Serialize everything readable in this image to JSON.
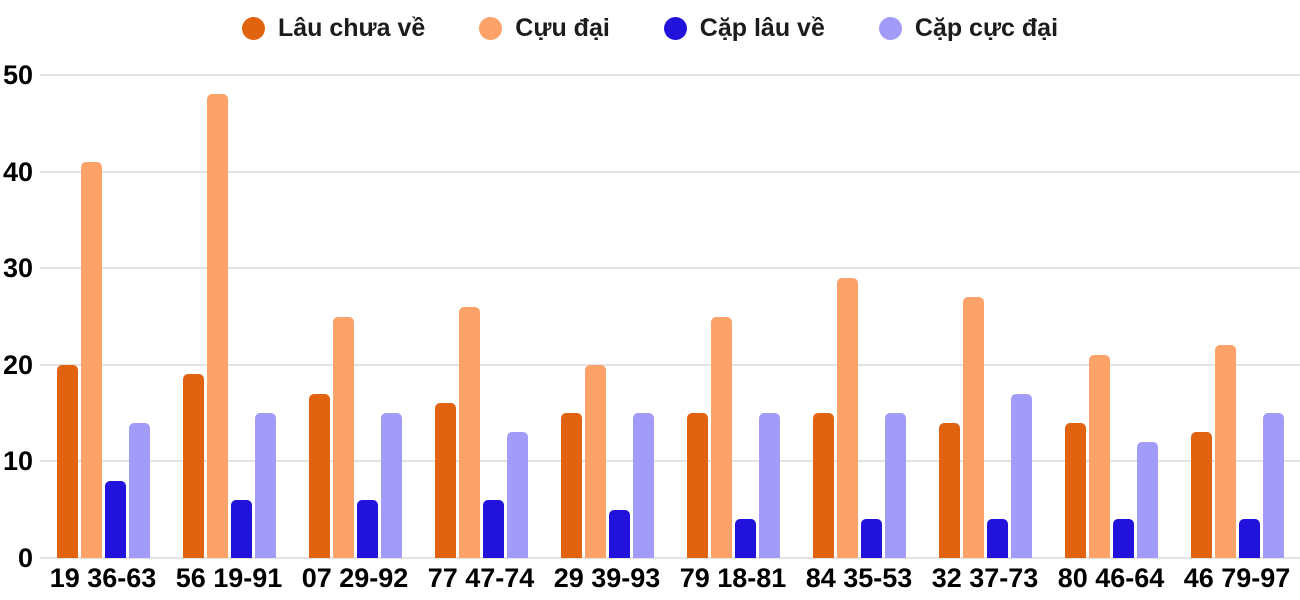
{
  "chart_data": {
    "type": "bar",
    "title": "",
    "xlabel": "",
    "ylabel": "",
    "categories": [
      "19 36-63",
      "56 19-91",
      "07 29-92",
      "77 47-74",
      "29 39-93",
      "79 18-81",
      "84 35-53",
      "32 37-73",
      "80 46-64",
      "46 79-97"
    ],
    "series": [
      {
        "name": "Lâu chưa về",
        "color": "#E2630F",
        "values": [
          20,
          19,
          17,
          16,
          15,
          15,
          15,
          14,
          14,
          13
        ]
      },
      {
        "name": "Cựu đại",
        "color": "#FDA269",
        "values": [
          41,
          48,
          25,
          26,
          20,
          25,
          29,
          27,
          21,
          22
        ]
      },
      {
        "name": "Cặp lâu về",
        "color": "#2112DC",
        "values": [
          8,
          6,
          6,
          6,
          5,
          4,
          4,
          4,
          4,
          4
        ]
      },
      {
        "name": "Cặp cực đại",
        "color": "#A29BF8",
        "values": [
          14,
          15,
          15,
          13,
          15,
          15,
          15,
          17,
          12,
          15
        ]
      }
    ],
    "ylim": [
      0,
      50
    ],
    "yticks": [
      0,
      10,
      20,
      30,
      40,
      50
    ],
    "grid": true,
    "legend_position": "top",
    "colors": {
      "background": "#ffffff",
      "gridline": "#e3e3e3",
      "axis_text": "#000000",
      "legend_text": "#1c1c1c"
    }
  }
}
